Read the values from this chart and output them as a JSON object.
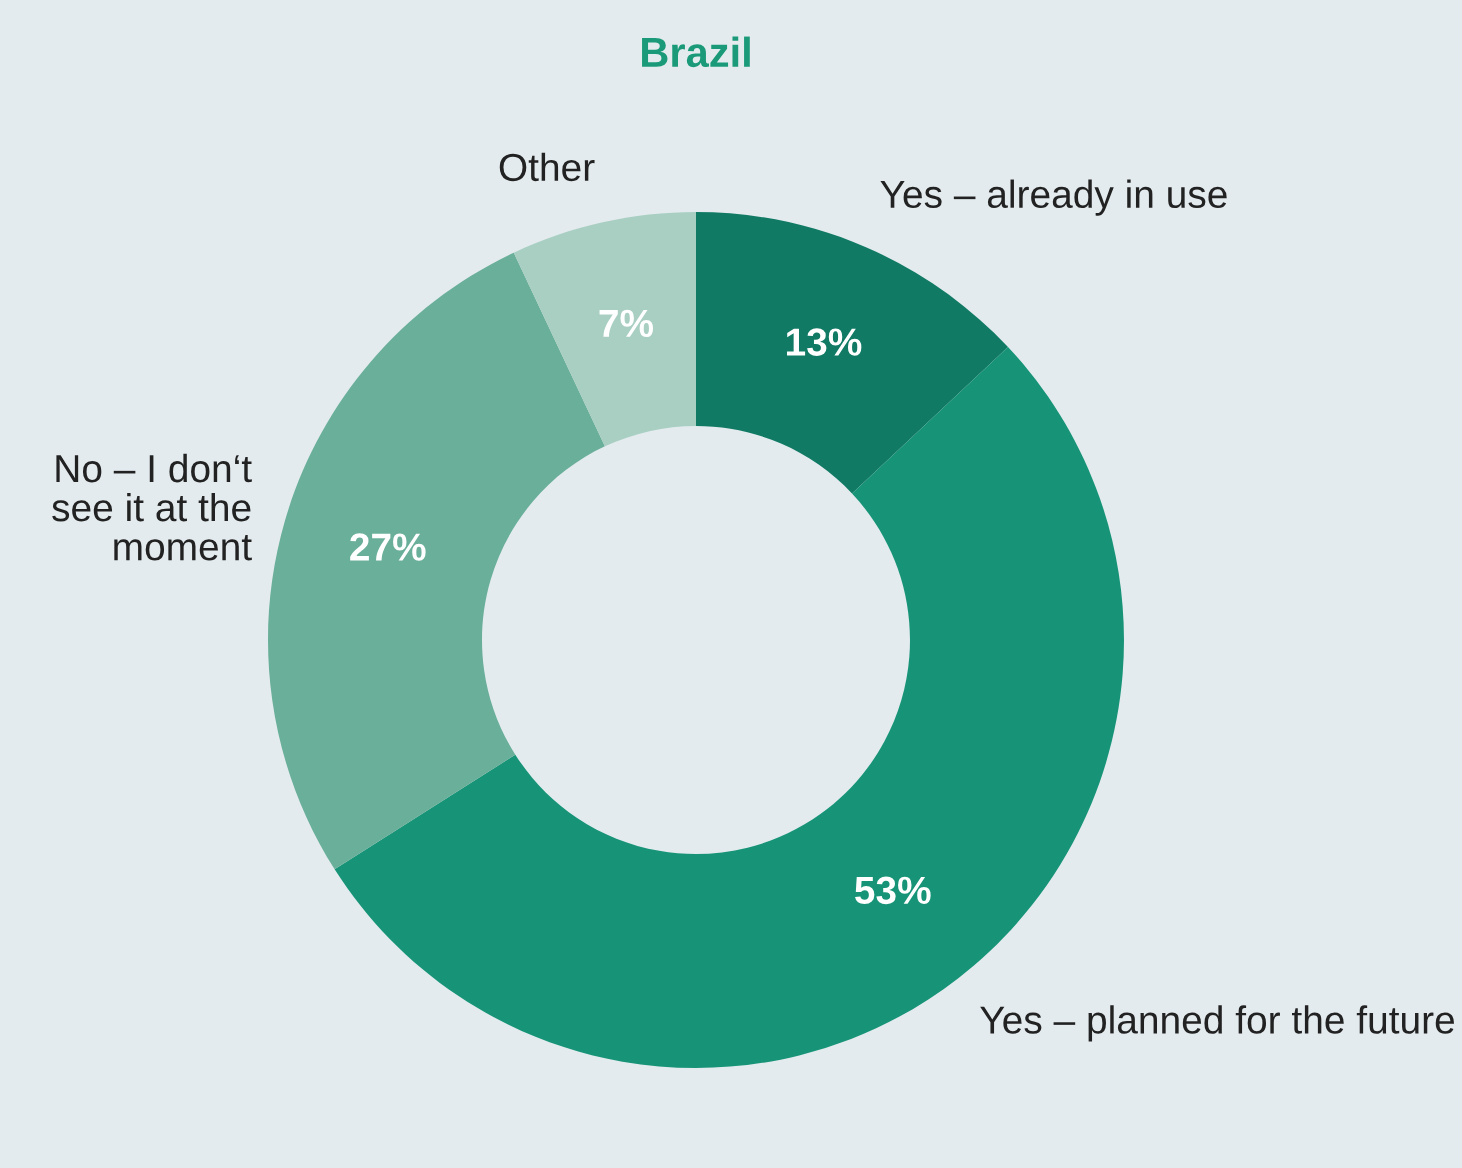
{
  "chart_data": {
    "type": "donut",
    "title": "Brazil",
    "categories": [
      "Yes – already in use",
      "Yes – planned for the future",
      "No – I don‘t see it at the moment",
      "Other"
    ],
    "values": [
      13,
      53,
      27,
      7
    ],
    "value_labels": [
      "13%",
      "53%",
      "27%",
      "7%"
    ],
    "colors": [
      "#117a64",
      "#179477",
      "#6aaf99",
      "#a9cfc2"
    ],
    "legend": false
  }
}
